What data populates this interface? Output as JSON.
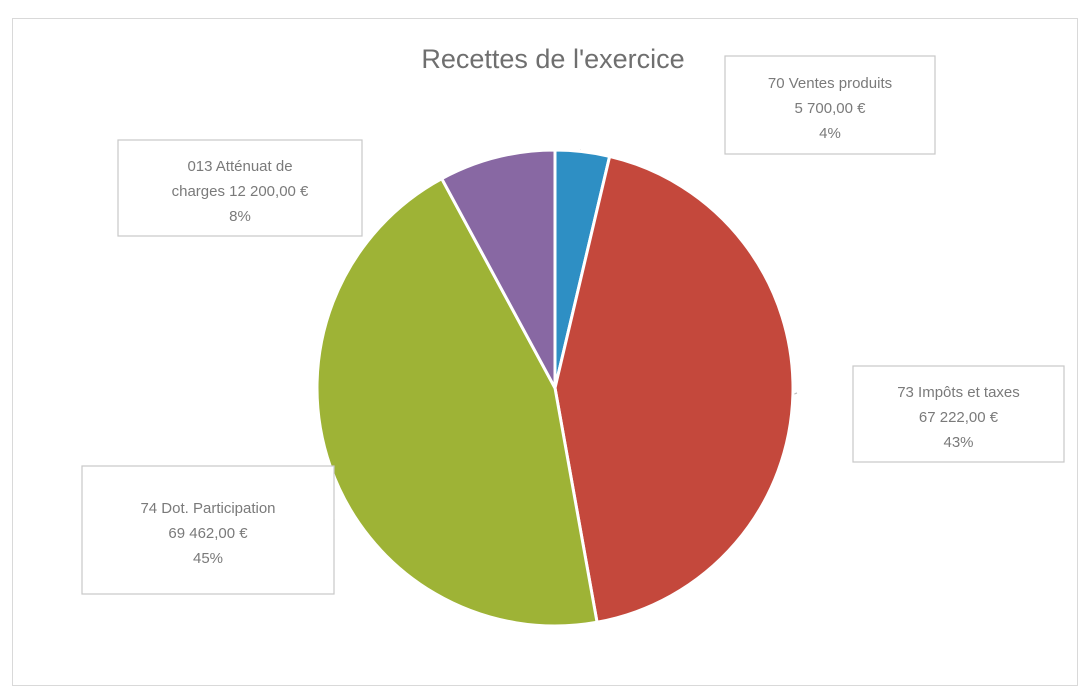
{
  "chart_data": {
    "type": "pie",
    "title": "Recettes de l'exercice",
    "slices": [
      {
        "line1": "70 Ventes produits",
        "line2": "5 700,00 €",
        "line3": "4%",
        "value": 5700,
        "percent": 4,
        "color": "#2e8fc4"
      },
      {
        "line1": "73 Impôts et taxes",
        "line2": "67 222,00 €",
        "line3": "43%",
        "value": 67222,
        "percent": 43,
        "color": "#c4483c"
      },
      {
        "line1": "74 Dot. Participation",
        "line2": "69 462,00 €",
        "line3": "45%",
        "value": 69462,
        "percent": 45,
        "color": "#9eb336"
      },
      {
        "line1": "013 Atténuat de",
        "line2": "charges  12 200,00 €",
        "line3": "8%",
        "value": 12200,
        "percent": 8,
        "color": "#8868a3"
      }
    ],
    "start_angle": "12 o'clock",
    "direction": "clockwise",
    "legend": "none"
  }
}
